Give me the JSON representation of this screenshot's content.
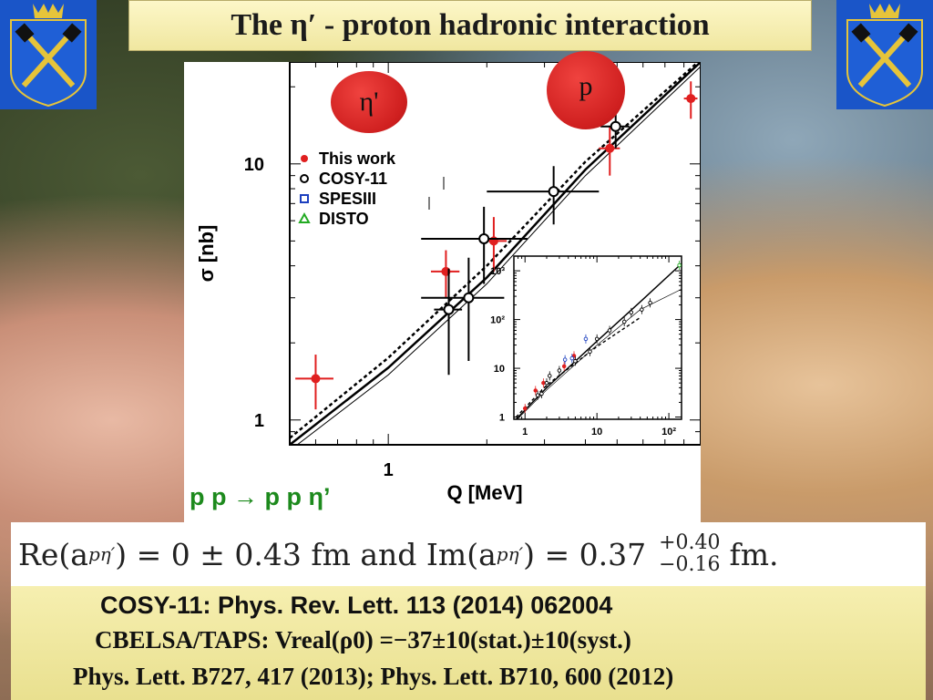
{
  "slide": {
    "title": "The  η′ - proton hadronic interaction",
    "bubble_eta": "η'",
    "bubble_p": "p",
    "reaction": "p p → p p η’",
    "formula": {
      "re_part": "Re(a",
      "subscript": "pη′",
      "re_value": ") = 0  ±  0.43 fm and Im(a",
      "im_value": ") = 0.37",
      "upper": "+0.40",
      "lower": "−0.16",
      "unit": "fm."
    },
    "refs": {
      "line1": "COSY-11:  Phys. Rev. Lett. 113 (2014) 062004",
      "line2": "CBELSA/TAPS: Vreal(ρ0) =−37±10(stat.)±10(syst.)",
      "line3": "Phys. Lett. B727, 417 (2013); Phys. Lett. B710, 600 (2012)"
    },
    "colors": {
      "title_bg": "#f0e7a0",
      "red": "#e01f1f",
      "green": "#1d8a1d",
      "blue": "#1c3fbf"
    }
  },
  "chart_data": [
    {
      "type": "scatter",
      "title": "",
      "xlabel": "Q [MeV]",
      "ylabel": "σ [nb]",
      "xscale": "log",
      "yscale": "log",
      "xlim": [
        0.5,
        9
      ],
      "ylim": [
        0.8,
        25
      ],
      "x_ticks": [
        {
          "v": 1,
          "label": "1"
        }
      ],
      "y_ticks": [
        {
          "v": 1,
          "label": "1"
        },
        {
          "v": 10,
          "label": "10"
        }
      ],
      "legend": {
        "placement": "upper-left",
        "entries": [
          {
            "name": "This work",
            "marker": "dot",
            "color": "#e01f1f"
          },
          {
            "name": "COSY-11",
            "marker": "circle",
            "color": "#000000"
          },
          {
            "name": "SPESIII",
            "marker": "square",
            "color": "#1c3fbf"
          },
          {
            "name": "DISTO",
            "marker": "triangle",
            "color": "#22aa22"
          }
        ]
      },
      "series": [
        {
          "name": "This work",
          "marker": "dot",
          "color": "#e01f1f",
          "points": [
            {
              "x": 0.6,
              "y": 1.45,
              "ey": 0.35,
              "ex": 0.08
            },
            {
              "x": 1.5,
              "y": 3.8,
              "ey": 0.8,
              "ex": 0.15
            },
            {
              "x": 2.1,
              "y": 5.0,
              "ey": 1.2,
              "ex": 0.2
            },
            {
              "x": 4.75,
              "y": 11.5,
              "ey": 2.5,
              "ex": 0.35
            },
            {
              "x": 8.4,
              "y": 18.0,
              "ey": 3.0,
              "ex": 0.4
            }
          ]
        },
        {
          "name": "COSY-11",
          "marker": "circle",
          "color": "#000000",
          "points": [
            {
              "x": 1.53,
              "y": 2.7,
              "ey": 1.2,
              "ex": 0.15
            },
            {
              "x": 1.76,
              "y": 3.0,
              "ey": 1.3,
              "ex": 0.5
            },
            {
              "x": 1.96,
              "y": 5.1,
              "ey": 1.7,
              "ex": 0.7
            },
            {
              "x": 3.2,
              "y": 7.8,
              "ey": 2.0,
              "ex": 1.2
            },
            {
              "x": 4.95,
              "y": 14.0,
              "ey": 2.5,
              "ex": 0.5
            }
          ]
        }
      ],
      "curves": [
        {
          "style": "solid",
          "width": 2.5,
          "points": [
            [
              0.5,
              0.8
            ],
            [
              1,
              1.6
            ],
            [
              2,
              3.6
            ],
            [
              4,
              9.5
            ],
            [
              9,
              25
            ]
          ]
        },
        {
          "style": "dashed",
          "width": 2.5,
          "points": [
            [
              0.5,
              0.85
            ],
            [
              1,
              1.75
            ],
            [
              2,
              4.0
            ],
            [
              4,
              10.2
            ],
            [
              9,
              25.5
            ]
          ]
        },
        {
          "style": "solid",
          "width": 1,
          "points": [
            [
              0.5,
              0.76
            ],
            [
              1,
              1.5
            ],
            [
              2,
              3.4
            ],
            [
              4,
              9.0
            ],
            [
              9,
              24
            ]
          ]
        }
      ]
    },
    {
      "type": "scatter",
      "title": "",
      "xscale": "log",
      "yscale": "log",
      "xlim": [
        0.7,
        150
      ],
      "ylim": [
        0.9,
        2000
      ],
      "x_ticks": [
        {
          "v": 1,
          "label": "1"
        },
        {
          "v": 10,
          "label": "10"
        },
        {
          "v": 100,
          "label": "10²"
        }
      ],
      "y_ticks": [
        {
          "v": 1,
          "label": "1"
        },
        {
          "v": 10,
          "label": "10"
        },
        {
          "v": 100,
          "label": "10²"
        },
        {
          "v": 1000,
          "label": "10³"
        }
      ],
      "series": [
        {
          "name": "This work",
          "color": "#e01f1f",
          "points": [
            [
              1.0,
              1.5
            ],
            [
              1.4,
              3.5
            ],
            [
              1.8,
              5.0
            ],
            [
              3.5,
              11
            ],
            [
              4.8,
              18
            ]
          ]
        },
        {
          "name": "COSY-11",
          "color": "#000000",
          "points": [
            [
              1.5,
              2.8
            ],
            [
              1.7,
              3.0
            ],
            [
              2.0,
              5.0
            ],
            [
              2.2,
              7
            ],
            [
              3.0,
              9
            ],
            [
              5,
              14
            ],
            [
              8,
              22
            ],
            [
              10,
              40
            ],
            [
              15,
              60
            ],
            [
              24,
              90
            ],
            [
              30,
              140
            ],
            [
              42,
              160
            ],
            [
              55,
              220
            ]
          ]
        },
        {
          "name": "SPESIII",
          "color": "#1c3fbf",
          "points": [
            [
              3.6,
              15
            ],
            [
              4.5,
              16
            ],
            [
              7,
              40
            ]
          ]
        },
        {
          "name": "DISTO",
          "color": "#22aa22",
          "points": [
            [
              140,
              1300
            ]
          ]
        }
      ],
      "curves": [
        {
          "style": "solid",
          "width": 1.6,
          "points": [
            [
              0.75,
              0.9
            ],
            [
              2,
              4
            ],
            [
              10,
              36
            ],
            [
              40,
              230
            ],
            [
              150,
              1400
            ]
          ]
        },
        {
          "style": "dashed",
          "width": 1.6,
          "points": [
            [
              0.75,
              1.0
            ],
            [
              2,
              4.5
            ],
            [
              10,
              28
            ],
            [
              40,
              110
            ]
          ]
        },
        {
          "style": "solid",
          "width": 0.7,
          "points": [
            [
              0.75,
              0.85
            ],
            [
              2,
              3.6
            ],
            [
              10,
              30
            ],
            [
              40,
              160
            ],
            [
              150,
              420
            ]
          ]
        }
      ]
    }
  ]
}
